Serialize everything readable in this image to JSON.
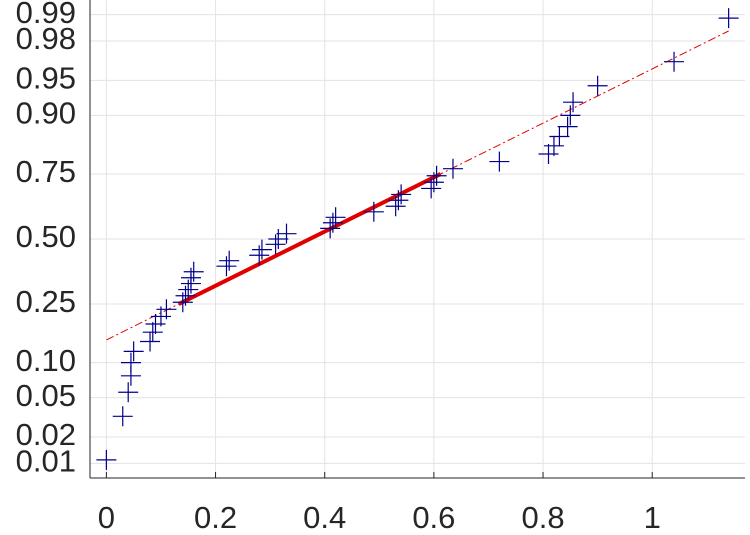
{
  "chart_data": {
    "type": "normal-probability",
    "yscale": "normal",
    "xlim": [
      -0.03,
      1.17
    ],
    "ylim": [
      0.0066,
      0.9934
    ],
    "xticks": [
      0,
      0.2,
      0.4,
      0.6,
      0.8,
      1
    ],
    "yticks": [
      0.01,
      0.02,
      0.05,
      {
        "value": 0.1,
        "label": "0.10"
      },
      0.25,
      {
        "value": 0.5,
        "label": "0.50"
      },
      0.75,
      {
        "value": 0.9,
        "label": "0.90"
      },
      0.95,
      0.98,
      0.99
    ],
    "grid": true,
    "reference_line_color": "#e00000",
    "series": [
      {
        "color": "#00008b",
        "x": [
          0,
          0.03,
          0.04,
          0.045,
          0.045,
          0.05,
          0.08,
          0.085,
          0.09,
          0.1,
          0.11,
          0.14,
          0.145,
          0.15,
          0.155,
          0.155,
          0.16,
          0.22,
          0.225,
          0.28,
          0.285,
          0.31,
          0.315,
          0.33,
          0.41,
          0.415,
          0.42,
          0.49,
          0.53,
          0.535,
          0.54,
          0.595,
          0.6,
          0.605,
          0.635,
          0.72,
          0.81,
          0.82,
          0.83,
          0.845,
          0.85,
          0.855,
          0.9,
          1.04,
          1.14
        ],
        "values": [
          0.011,
          0.033,
          0.056,
          0.078,
          0.1,
          0.122,
          0.144,
          0.167,
          0.189,
          0.211,
          0.233,
          0.256,
          0.278,
          0.3,
          0.322,
          0.344,
          0.367,
          0.389,
          0.411,
          0.433,
          0.456,
          0.478,
          0.5,
          0.522,
          0.544,
          0.567,
          0.589,
          0.611,
          0.633,
          0.656,
          0.678,
          0.7,
          0.722,
          0.744,
          0.767,
          0.789,
          0.811,
          0.833,
          0.856,
          0.878,
          0.9,
          0.922,
          0.944,
          0.967,
          0.989
        ]
      }
    ]
  }
}
